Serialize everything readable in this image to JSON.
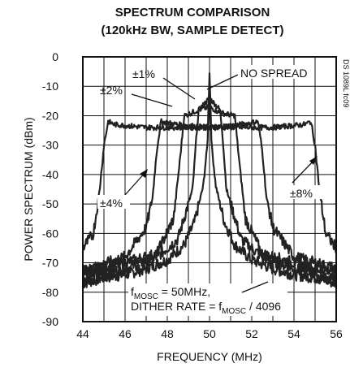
{
  "chart_data": {
    "type": "line",
    "title_lines": [
      "SPECTRUM COMPARISON",
      "(120kHz BW, SAMPLE DETECT)"
    ],
    "xlabel": "FREQUENCY (MHz)",
    "ylabel": "POWER SPECTRUM (dBm)",
    "xlim": [
      44,
      56
    ],
    "ylim": [
      -90,
      0
    ],
    "xticks": [
      44,
      46,
      48,
      50,
      52,
      54,
      56
    ],
    "yticks": [
      0,
      -10,
      -20,
      -30,
      -40,
      -50,
      -60,
      -70,
      -80,
      -90
    ],
    "grid": true,
    "doc_id": "DS 1089L fc09",
    "series": [
      {
        "name": "NO SPREAD",
        "x": [
          44,
          45,
          46,
          47,
          48,
          48.8,
          49.3,
          49.7,
          49.9,
          50.0,
          50.1,
          50.3,
          50.7,
          51.2,
          52,
          53,
          54,
          55,
          56
        ],
        "y": [
          -77,
          -75,
          -74,
          -72,
          -69,
          -64,
          -56,
          -44,
          -30,
          -5,
          -30,
          -44,
          -56,
          -64,
          -69,
          -72,
          -74,
          -75,
          -77
        ]
      },
      {
        "name": "±1%",
        "x": [
          44,
          46,
          47.5,
          48.5,
          49.2,
          49.4,
          49.5,
          50.0,
          50.5,
          50.6,
          50.8,
          51.5,
          52.5,
          54,
          56
        ],
        "y": [
          -75,
          -72,
          -68,
          -62,
          -45,
          -25,
          -18,
          -14,
          -18,
          -25,
          -45,
          -62,
          -68,
          -72,
          -76
        ]
      },
      {
        "name": "±2%",
        "x": [
          44,
          46,
          47.5,
          48.3,
          48.6,
          48.8,
          49.5,
          50.0,
          50.5,
          51.2,
          51.4,
          51.7,
          52.5,
          54,
          56
        ],
        "y": [
          -73,
          -70,
          -67,
          -55,
          -35,
          -20,
          -18,
          -17,
          -19,
          -20,
          -35,
          -55,
          -67,
          -70,
          -74
        ]
      },
      {
        "name": "±4%",
        "x": [
          44,
          46,
          47,
          47.3,
          47.5,
          47.7,
          48.5,
          50.0,
          51.5,
          52.3,
          52.5,
          52.7,
          53,
          54,
          56
        ],
        "y": [
          -73,
          -68,
          -58,
          -48,
          -32,
          -22,
          -23,
          -24,
          -23,
          -22,
          -32,
          -48,
          -58,
          -68,
          -72
        ]
      },
      {
        "name": "±8%",
        "x": [
          44,
          44.5,
          44.8,
          45.0,
          45.2,
          45.5,
          47,
          50.0,
          53,
          54.5,
          54.8,
          55.0,
          55.2,
          55.5,
          56
        ],
        "y": [
          -65,
          -60,
          -45,
          -30,
          -22,
          -23,
          -24,
          -24,
          -24,
          -23,
          -22,
          -30,
          -45,
          -60,
          -65
        ]
      }
    ],
    "annotations": {
      "no_spread": "NO SPREAD",
      "pm1": "±1%",
      "pm2": "±2%",
      "pm4": "±4%",
      "pm8": "±8%",
      "note_line1_prefix": "f",
      "note_line1_sub": "MOSC",
      "note_line1_suffix": " = 50MHz,",
      "note_line2_prefix": "DITHER RATE = f",
      "note_line2_sub": "MOSC",
      "note_line2_suffix": " / 4096"
    }
  }
}
